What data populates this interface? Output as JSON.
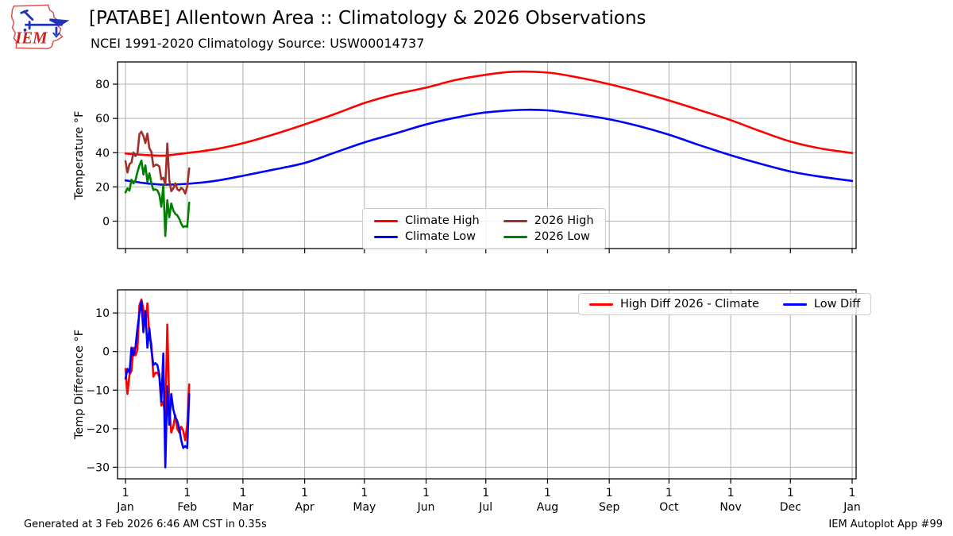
{
  "header": {
    "title": "[PATABE] Allentown Area :: Climatology & 2026 Observations",
    "subtitle": "NCEI 1991-2020 Climatology Source: USW00014737",
    "logo_text": "IEM"
  },
  "footer": {
    "generated": "Generated at 3 Feb 2026 6:46 AM CST in 0.35s",
    "app": "IEM Autoplot App #99"
  },
  "colors": {
    "climate_high": "#ff0000",
    "climate_low": "#0000ff",
    "obs_high": "#a0302a",
    "obs_low": "#008000",
    "grid": "#b0b0b0",
    "spine": "#000000",
    "logo_red": "#d9534f",
    "logo_dark_red": "#cc2222",
    "logo_blue": "#2233bb"
  },
  "xaxis": {
    "xlim": [
      -3,
      368
    ],
    "tick_days": [
      1,
      32,
      60,
      91,
      121,
      152,
      182,
      213,
      244,
      274,
      305,
      335,
      366
    ],
    "day_labels": [
      "1",
      "1",
      "1",
      "1",
      "1",
      "1",
      "1",
      "1",
      "1",
      "1",
      "1",
      "1",
      "1"
    ],
    "month_labels": [
      "Jan",
      "Feb",
      "Mar",
      "Apr",
      "May",
      "Jun",
      "Jul",
      "Aug",
      "Sep",
      "Oct",
      "Nov",
      "Dec",
      "Jan"
    ]
  },
  "chart_data": [
    {
      "id": "temperature",
      "type": "line",
      "ylabel": "Temperature °F",
      "ylim": [
        -16,
        93
      ],
      "yticks": [
        0,
        20,
        40,
        60,
        80
      ],
      "grid": true,
      "legend_position": "lower-center",
      "series": [
        {
          "name": "Climate High",
          "color_key": "climate_high",
          "smooth": true,
          "x": [
            1,
            10,
            15,
            21,
            32,
            46,
            60,
            75,
            91,
            106,
            121,
            136,
            152,
            167,
            182,
            196,
            213,
            228,
            244,
            259,
            274,
            289,
            305,
            320,
            335,
            350,
            366
          ],
          "y": [
            39.5,
            38.7,
            38.4,
            38.3,
            39.8,
            42,
            45.5,
            50.5,
            56.5,
            62.5,
            69,
            74,
            78,
            82.5,
            85.5,
            87.3,
            86.8,
            84,
            80,
            75.5,
            70.5,
            65,
            59,
            52.5,
            46.5,
            42.5,
            39.8
          ]
        },
        {
          "name": "Climate Low",
          "color_key": "climate_low",
          "smooth": true,
          "x": [
            1,
            10,
            15,
            21,
            32,
            46,
            60,
            75,
            91,
            106,
            121,
            136,
            152,
            167,
            182,
            200,
            213,
            228,
            244,
            259,
            274,
            289,
            305,
            320,
            335,
            350,
            366
          ],
          "y": [
            23.8,
            22.3,
            21.7,
            21.3,
            21.8,
            23.5,
            26.5,
            30,
            34,
            40,
            46,
            51,
            56.5,
            60.5,
            63.5,
            65,
            64.7,
            62.5,
            59.5,
            55.5,
            50.5,
            44.5,
            38.5,
            33.5,
            29,
            26,
            23.5
          ]
        },
        {
          "name": "2026 High",
          "color_key": "obs_high",
          "smooth": false,
          "x": [
            1,
            2,
            3,
            4,
            5,
            6,
            7,
            8,
            9,
            10,
            11,
            12,
            13,
            14,
            15,
            16,
            17,
            18,
            19,
            20,
            21,
            22,
            23,
            24,
            25,
            26,
            27,
            28,
            29,
            30,
            31,
            32,
            33
          ],
          "y": [
            35,
            28.4,
            33.3,
            34.2,
            40.1,
            38,
            39.4,
            50.8,
            52.3,
            49.7,
            45.6,
            51.1,
            42.5,
            40.5,
            31.9,
            32.9,
            32.9,
            31.9,
            24.4,
            25.4,
            21.4,
            45.4,
            24,
            17.5,
            19.1,
            22.1,
            18.7,
            17.8,
            19.4,
            18.5,
            16.1,
            20.2,
            30.8
          ]
        },
        {
          "name": "2026 Low",
          "color_key": "obs_low",
          "smooth": false,
          "x": [
            1,
            2,
            3,
            4,
            5,
            6,
            7,
            8,
            9,
            10,
            11,
            12,
            13,
            14,
            15,
            16,
            17,
            18,
            19,
            20,
            21,
            22,
            23,
            24,
            25,
            26,
            27,
            28,
            29,
            30,
            31,
            32,
            33
          ],
          "y": [
            16.8,
            19.1,
            17.9,
            24.2,
            22,
            23.8,
            28.7,
            32.5,
            35.4,
            27.2,
            32.6,
            23,
            27.9,
            22.3,
            18.2,
            18.6,
            18,
            15.5,
            8.4,
            20.9,
            -8.7,
            12.3,
            2.3,
            10.3,
            6.3,
            4.3,
            3.4,
            1.4,
            -1.5,
            -3.5,
            -2.9,
            -3.3,
            10.8
          ]
        }
      ]
    },
    {
      "id": "difference",
      "type": "line",
      "ylabel": "Temp Difference °F",
      "ylim": [
        -33,
        16
      ],
      "yticks": [
        -30,
        -20,
        -10,
        0,
        10
      ],
      "grid": true,
      "legend_position": "upper-right",
      "series": [
        {
          "name": "High Diff 2026 - Climate",
          "color_key": "climate_high",
          "smooth": false,
          "x": [
            1,
            2,
            3,
            4,
            5,
            6,
            7,
            8,
            9,
            10,
            11,
            12,
            13,
            14,
            15,
            16,
            17,
            18,
            19,
            20,
            21,
            22,
            23,
            24,
            25,
            26,
            27,
            28,
            29,
            30,
            31,
            32,
            33
          ],
          "y": [
            -4.5,
            -11,
            -6,
            -5,
            1,
            -1,
            0.5,
            12,
            13.5,
            11,
            7,
            12.5,
            4,
            2,
            -6.5,
            -5.5,
            -5.5,
            -6.5,
            -14,
            -13,
            -17,
            7,
            -14.5,
            -21,
            -19.5,
            -16.5,
            -20,
            -21,
            -19.5,
            -20.5,
            -23,
            -19,
            -8.5
          ]
        },
        {
          "name": "Low Diff",
          "color_key": "climate_low",
          "smooth": false,
          "x": [
            1,
            2,
            3,
            4,
            5,
            6,
            7,
            8,
            9,
            10,
            11,
            12,
            13,
            14,
            15,
            16,
            17,
            18,
            19,
            20,
            21,
            22,
            23,
            24,
            25,
            26,
            27,
            28,
            29,
            30,
            31,
            32,
            33
          ],
          "y": [
            -7,
            -4.5,
            -5.5,
            1,
            -1,
            1,
            6,
            10,
            13,
            5,
            10.5,
            1,
            6,
            0.5,
            -3.5,
            -3,
            -3.5,
            -6,
            -13,
            -0.5,
            -30,
            -9,
            -19,
            -11,
            -15,
            -17,
            -18,
            -20,
            -23,
            -25,
            -24.5,
            -25,
            -11
          ]
        }
      ]
    }
  ]
}
